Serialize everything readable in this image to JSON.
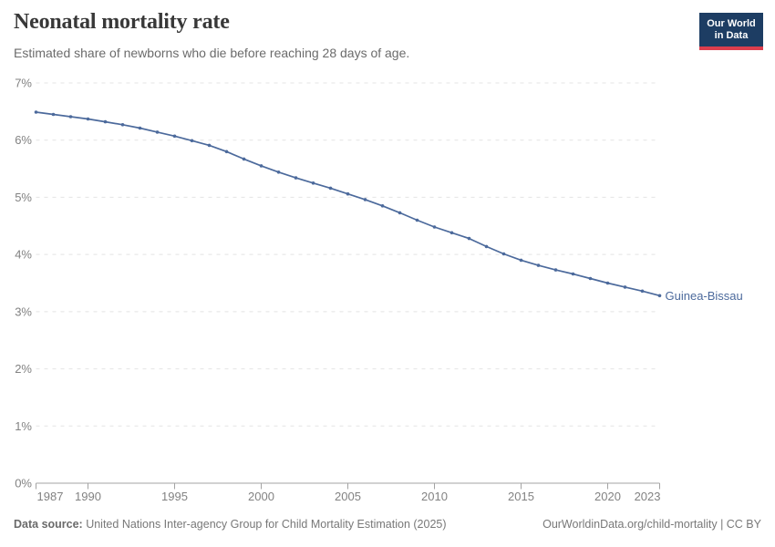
{
  "header": {
    "title": "Neonatal mortality rate",
    "subtitle": "Estimated share of newborns who die before reaching 28 days of age.",
    "logo": {
      "line1": "Our World",
      "line2": "in Data"
    }
  },
  "chart_data": {
    "type": "line",
    "title": "Neonatal mortality rate",
    "xlabel": "",
    "ylabel": "",
    "unit": "%",
    "xlim": [
      1987,
      2023
    ],
    "ylim": [
      0,
      7
    ],
    "grid": "horizontal-dashed",
    "legend_position": "end-of-line-label",
    "xticks": [
      1987,
      1990,
      1995,
      2000,
      2005,
      2010,
      2015,
      2020,
      2023
    ],
    "ytick_labels": [
      "0%",
      "1%",
      "2%",
      "3%",
      "4%",
      "5%",
      "6%",
      "7%"
    ],
    "x": [
      1987,
      1988,
      1989,
      1990,
      1991,
      1992,
      1993,
      1994,
      1995,
      1996,
      1997,
      1998,
      1999,
      2000,
      2001,
      2002,
      2003,
      2004,
      2005,
      2006,
      2007,
      2008,
      2009,
      2010,
      2011,
      2012,
      2013,
      2014,
      2015,
      2016,
      2017,
      2018,
      2019,
      2020,
      2021,
      2022,
      2023
    ],
    "series": [
      {
        "name": "Guinea-Bissau",
        "color": "#4C6A9C",
        "values": [
          6.49,
          6.45,
          6.41,
          6.37,
          6.32,
          6.27,
          6.21,
          6.14,
          6.07,
          5.99,
          5.91,
          5.8,
          5.67,
          5.55,
          5.44,
          5.34,
          5.25,
          5.16,
          5.06,
          4.96,
          4.85,
          4.73,
          4.6,
          4.48,
          4.38,
          4.28,
          4.14,
          4.01,
          3.9,
          3.81,
          3.73,
          3.66,
          3.58,
          3.5,
          3.43,
          3.36,
          3.28
        ]
      }
    ]
  },
  "footer": {
    "datasource_label": "Data source:",
    "datasource_text": " United Nations Inter-agency Group for Child Mortality Estimation (2025)",
    "link_text": "OurWorldinData.org/child-mortality | CC BY"
  },
  "colors": {
    "line": "#4C6A9C",
    "grid": "#e4e4e4",
    "axis": "#a3a3a3",
    "tick_label": "#828282",
    "title": "#383838",
    "subtitle": "#6b6b6b",
    "footer": "#787878",
    "logo_bg": "#1d3d63",
    "logo_accent": "#dc3e4d"
  }
}
